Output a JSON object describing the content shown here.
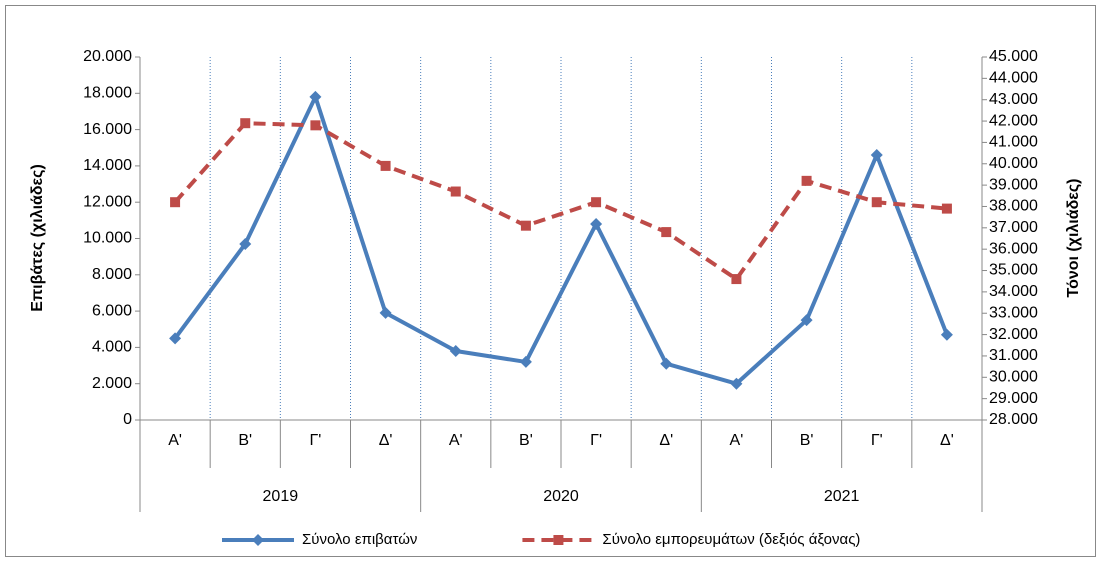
{
  "chart_data": {
    "type": "line",
    "y_label": "Επιβάτες  (χιλιάδες)",
    "y2_label": "Τόνοι  (χιλιάδες)",
    "categories": [
      "Α'",
      "Β'",
      "Γ'",
      "Δ'",
      "Α'",
      "Β'",
      "Γ'",
      "Δ'",
      "Α'",
      "Β'",
      "Γ'",
      "Δ'"
    ],
    "category_groups": [
      "2019",
      "2020",
      "2021"
    ],
    "ylim": [
      0,
      20000
    ],
    "yticks": [
      0,
      {
        "value": 2000,
        "label": "2.000"
      },
      {
        "value": 4000,
        "label": "4.000"
      },
      {
        "value": 6000,
        "label": "6.000"
      },
      {
        "value": 8000,
        "label": "8.000"
      },
      {
        "value": 10000,
        "label": "10.000"
      },
      {
        "value": 12000,
        "label": "12.000"
      },
      {
        "value": 14000,
        "label": "14.000"
      },
      {
        "value": 16000,
        "label": "16.000"
      },
      {
        "value": 18000,
        "label": "18.000"
      },
      {
        "value": 20000,
        "label": "20.000"
      }
    ],
    "y2lim": [
      28000,
      45000
    ],
    "y2ticks": [
      {
        "value": 28000,
        "label": "28.000"
      },
      {
        "value": 29000,
        "label": "29.000"
      },
      {
        "value": 30000,
        "label": "30.000"
      },
      {
        "value": 31000,
        "label": "31.000"
      },
      {
        "value": 32000,
        "label": "32.000"
      },
      {
        "value": 33000,
        "label": "33.000"
      },
      {
        "value": 34000,
        "label": "34.000"
      },
      {
        "value": 35000,
        "label": "35.000"
      },
      {
        "value": 36000,
        "label": "36.000"
      },
      {
        "value": 37000,
        "label": "37.000"
      },
      {
        "value": 38000,
        "label": "38.000"
      },
      {
        "value": 39000,
        "label": "39.000"
      },
      {
        "value": 40000,
        "label": "40.000"
      },
      {
        "value": 41000,
        "label": "41.000"
      },
      {
        "value": 42000,
        "label": "42.000"
      },
      {
        "value": 43000,
        "label": "43.000"
      },
      {
        "value": 44000,
        "label": "44.000"
      },
      {
        "value": 45000,
        "label": "45.000"
      }
    ],
    "legend": "bottom",
    "series": [
      {
        "name": "Σύνολο επιβατών",
        "color": "#4a7ebb",
        "marker": "diamond",
        "dashed": false,
        "values": [
          4500,
          9700,
          17800,
          5900,
          3800,
          3200,
          10800,
          3100,
          2000,
          5500,
          14600,
          4700
        ]
      },
      {
        "name": "Σύνολο εμπορευμάτων (δεξιός άξονας)",
        "color": "#be4b48",
        "marker": "square",
        "dashed": true,
        "axis": "y2",
        "values": [
          38200,
          41900,
          41800,
          39900,
          38700,
          37100,
          38200,
          36800,
          34600,
          39200,
          38200,
          37900
        ]
      }
    ]
  }
}
